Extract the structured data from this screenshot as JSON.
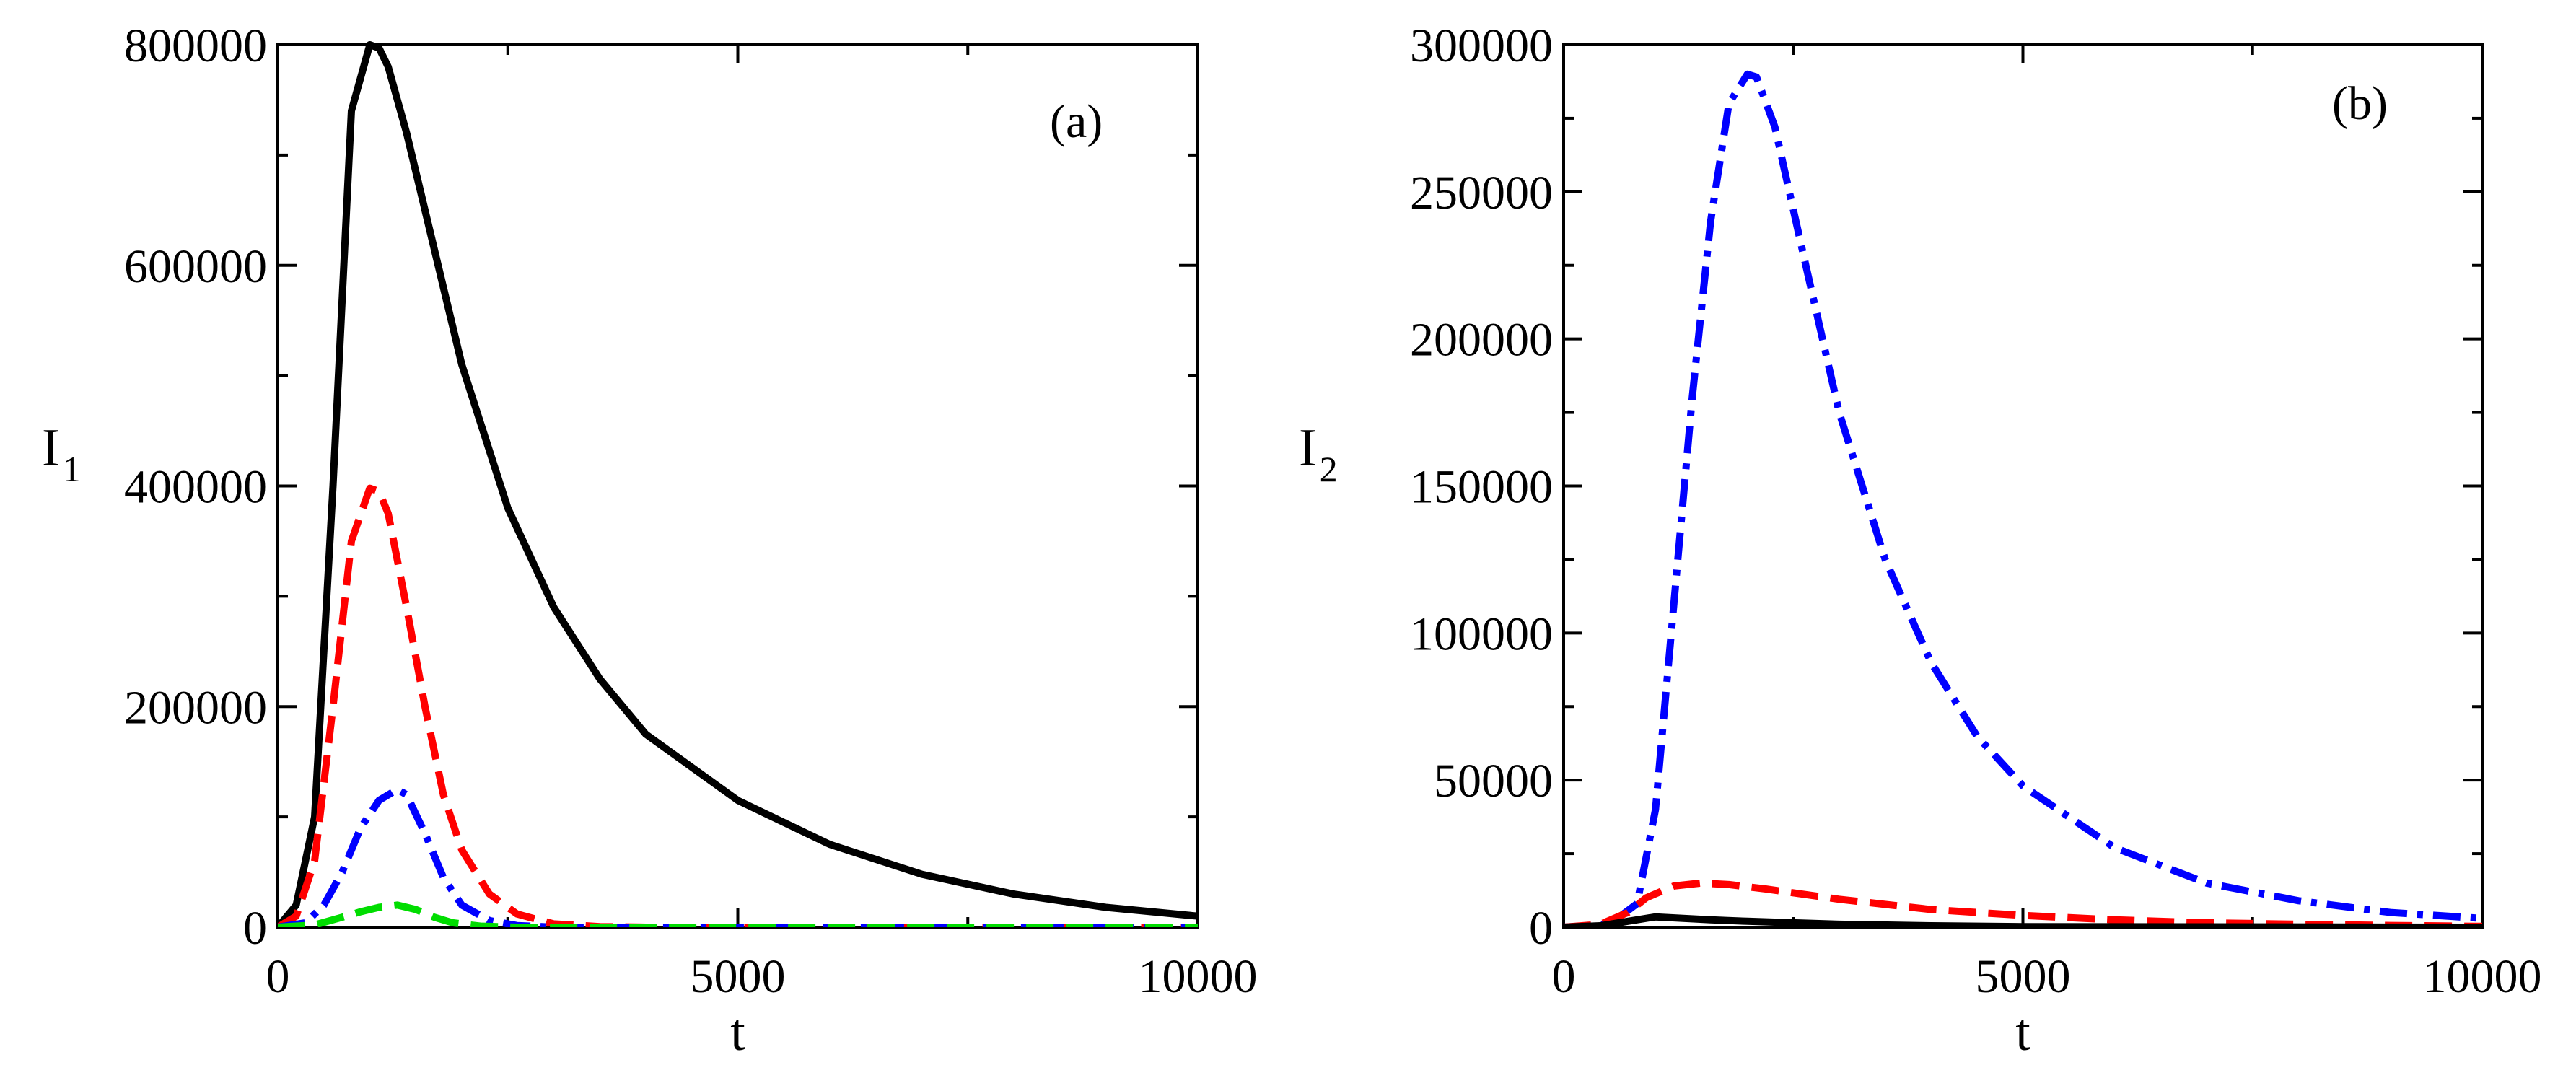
{
  "chart_data": [
    {
      "type": "line",
      "panel_label": "(a)",
      "xlabel": "t",
      "ylabel": "I",
      "ylabel_subscript": "1",
      "xlim": [
        0,
        10000
      ],
      "ylim": [
        0,
        800000
      ],
      "x_ticks": [
        0,
        5000,
        10000
      ],
      "y_ticks": [
        0,
        200000,
        400000,
        600000,
        800000
      ],
      "x_tick_labels": [
        "0",
        "5000",
        "10000"
      ],
      "y_tick_labels": [
        "0",
        "200000",
        "400000",
        "600000",
        "800000"
      ],
      "series": [
        {
          "color": "#000000",
          "style": "solid",
          "x": [
            0,
            200,
            400,
            600,
            800,
            1000,
            1100,
            1200,
            1400,
            1600,
            2000,
            2500,
            3000,
            3500,
            4000,
            5000,
            6000,
            7000,
            8000,
            9000,
            10000
          ],
          "y": [
            0,
            20000,
            100000,
            400000,
            740000,
            800000,
            797000,
            780000,
            720000,
            650000,
            510000,
            380000,
            290000,
            225000,
            175000,
            115000,
            75000,
            48000,
            30000,
            18000,
            10000
          ]
        },
        {
          "color": "#ff0000",
          "style": "dashed",
          "x": [
            0,
            200,
            400,
            600,
            800,
            1000,
            1100,
            1200,
            1400,
            1600,
            1800,
            2000,
            2300,
            2600,
            3000,
            3500,
            4000,
            5000,
            10000
          ],
          "y": [
            0,
            10000,
            60000,
            200000,
            350000,
            398000,
            395000,
            375000,
            290000,
            200000,
            120000,
            70000,
            30000,
            12000,
            3000,
            500,
            0,
            0,
            0
          ]
        },
        {
          "color": "#0000ff",
          "style": "dashdot",
          "x": [
            0,
            300,
            500,
            700,
            900,
            1100,
            1300,
            1400,
            1600,
            1800,
            2000,
            2300,
            2600,
            3000,
            10000
          ],
          "y": [
            0,
            4000,
            20000,
            50000,
            90000,
            115000,
            125000,
            120000,
            85000,
            45000,
            20000,
            6000,
            1500,
            0,
            0
          ]
        },
        {
          "color": "#00dd00",
          "style": "dashed",
          "x": [
            0,
            400,
            700,
            900,
            1100,
            1300,
            1500,
            1700,
            1900,
            2200,
            2600,
            10000
          ],
          "y": [
            0,
            2000,
            9000,
            14000,
            18000,
            20000,
            16000,
            9000,
            4000,
            1000,
            0,
            0
          ]
        }
      ]
    },
    {
      "type": "line",
      "panel_label": "(b)",
      "xlabel": "t",
      "ylabel": "I",
      "ylabel_subscript": "2",
      "xlim": [
        0,
        10000
      ],
      "ylim": [
        0,
        300000
      ],
      "x_ticks": [
        0,
        5000,
        10000
      ],
      "y_ticks": [
        0,
        50000,
        100000,
        150000,
        200000,
        250000,
        300000
      ],
      "x_tick_labels": [
        "0",
        "5000",
        "10000"
      ],
      "y_tick_labels": [
        "0",
        "50000",
        "100000",
        "150000",
        "200000",
        "250000",
        "300000"
      ],
      "series": [
        {
          "color": "#0000ff",
          "style": "dashdot",
          "x": [
            0,
            500,
            800,
            1000,
            1200,
            1400,
            1600,
            1800,
            2000,
            2100,
            2300,
            2600,
            3000,
            3500,
            4000,
            4500,
            5000,
            6000,
            7000,
            8000,
            9000,
            10000
          ],
          "y": [
            0,
            1000,
            8000,
            40000,
            110000,
            180000,
            240000,
            280000,
            290000,
            289000,
            272000,
            230000,
            175000,
            125000,
            90000,
            65000,
            48000,
            27000,
            15000,
            9000,
            5000,
            3000
          ]
        },
        {
          "color": "#ff0000",
          "style": "dashed",
          "x": [
            0,
            400,
            700,
            900,
            1200,
            1500,
            1800,
            2200,
            3000,
            4000,
            5000,
            6000,
            7000,
            8000,
            9000,
            10000
          ],
          "y": [
            0,
            1000,
            5000,
            10000,
            14000,
            15000,
            14500,
            13000,
            9500,
            6000,
            4000,
            2500,
            1500,
            1000,
            600,
            300
          ]
        },
        {
          "color": "#000000",
          "style": "solid",
          "x": [
            0,
            400,
            700,
            1000,
            1300,
            1600,
            2000,
            2500,
            3000,
            4000,
            5000,
            10000
          ],
          "y": [
            0,
            500,
            2000,
            3500,
            3000,
            2500,
            2000,
            1500,
            1000,
            500,
            200,
            0
          ]
        }
      ]
    }
  ]
}
